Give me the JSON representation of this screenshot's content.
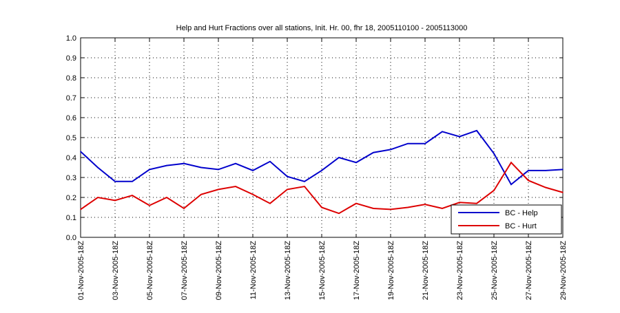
{
  "chart_data": {
    "type": "line",
    "title": "Help and Hurt Fractions over all stations, Init. Hr. 00, fhr 18, 2005110100 - 2005113000",
    "xlabel": "",
    "ylabel": "",
    "ylim": [
      0,
      1
    ],
    "yticks": [
      "0.0",
      "0.1",
      "0.2",
      "0.3",
      "0.4",
      "0.5",
      "0.6",
      "0.7",
      "0.8",
      "0.9",
      "1.0"
    ],
    "xticks": [
      "01-Nov-2005-18Z",
      "03-Nov-2005-18Z",
      "05-Nov-2005-18Z",
      "07-Nov-2005-18Z",
      "09-Nov-2005-18Z",
      "11-Nov-2005-18Z",
      "13-Nov-2005-18Z",
      "15-Nov-2005-18Z",
      "17-Nov-2005-18Z",
      "19-Nov-2005-18Z",
      "21-Nov-2005-18Z",
      "23-Nov-2005-18Z",
      "25-Nov-2005-18Z",
      "27-Nov-2005-18Z",
      "29-Nov-2005-18Z"
    ],
    "x": [
      1,
      2,
      3,
      4,
      5,
      6,
      7,
      8,
      9,
      10,
      11,
      12,
      13,
      14,
      15,
      16,
      17,
      18,
      19,
      20,
      21,
      22,
      23,
      24,
      25,
      26,
      27,
      28,
      29
    ],
    "xlim": [
      1,
      29
    ],
    "grid": true,
    "legend_position": "bottom-right",
    "series": [
      {
        "name": "BC - Help",
        "color": "#0000cc",
        "values": [
          0.43,
          0.35,
          0.28,
          0.28,
          0.34,
          0.36,
          0.37,
          0.35,
          0.34,
          0.37,
          0.335,
          0.38,
          0.305,
          0.28,
          0.335,
          0.4,
          0.375,
          0.425,
          0.44,
          0.47,
          0.47,
          0.53,
          0.505,
          0.535,
          0.42,
          0.265,
          0.335,
          0.335,
          0.34
        ]
      },
      {
        "name": "BC - Hurt",
        "color": "#dd0000",
        "values": [
          0.14,
          0.2,
          0.185,
          0.21,
          0.16,
          0.2,
          0.145,
          0.215,
          0.24,
          0.255,
          0.215,
          0.17,
          0.24,
          0.255,
          0.15,
          0.12,
          0.17,
          0.145,
          0.14,
          0.15,
          0.165,
          0.145,
          0.175,
          0.17,
          0.235,
          0.375,
          0.285,
          0.25,
          0.225
        ]
      }
    ]
  }
}
